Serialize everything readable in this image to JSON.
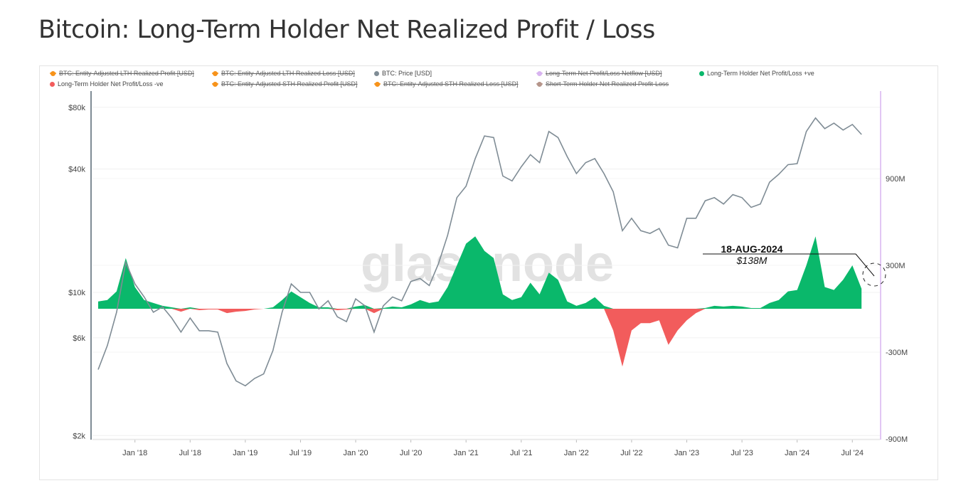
{
  "title": "Bitcoin: Long-Term Holder Net Realized Profit / Loss",
  "watermark": "glassnode",
  "legend": [
    {
      "label": "BTC: Entity-Adjusted LTH Realized Profit [USD]",
      "color": "#f7931a",
      "active": false
    },
    {
      "label": "BTC: Entity-Adjusted LTH Realized Loss [USD]",
      "color": "#f7931a",
      "active": false
    },
    {
      "label": "BTC: Price [USD]",
      "color": "#7f8c95",
      "active": true
    },
    {
      "label": "Long-Term Net Profit/Loss Netflow [USD]",
      "color": "#d8b4f0",
      "active": false
    },
    {
      "label": "Long-Term Holder Net Profit/Loss +ve",
      "color": "#0ab86b",
      "active": true
    },
    {
      "label": "Long-Term Holder Net Profit/Loss -ve",
      "color": "#f25c5c",
      "active": true
    },
    {
      "label": "BTC: Entity-Adjusted STH Realized Profit [USD]",
      "color": "#f7931a",
      "active": false
    },
    {
      "label": "BTC: Entity-Adjusted STH Realized Loss [USD]",
      "color": "#f7931a",
      "active": false
    },
    {
      "label": "Short-Term Holder Net Realized Profit-Loss",
      "color": "#b5958a",
      "active": false
    }
  ],
  "annotation": {
    "date": "18-AUG-2024",
    "value": "$138M"
  },
  "chart_data": {
    "type": "line+area",
    "x_tick_labels": [
      "Jan '18",
      "Jul '18",
      "Jan '19",
      "Jul '19",
      "Jan '20",
      "Jul '20",
      "Jan '21",
      "Jul '21",
      "Jan '22",
      "Jul '22",
      "Jan '23",
      "Jul '23",
      "Jan '24",
      "Jul '24"
    ],
    "y_left": {
      "scale": "log",
      "ticks": [
        {
          "v": 80000,
          "label": "$80k"
        },
        {
          "v": 40000,
          "label": "$40k"
        },
        {
          "v": 10000,
          "label": "$10k"
        },
        {
          "v": 6000,
          "label": "$6k"
        },
        {
          "v": 2000,
          "label": "$2k"
        }
      ]
    },
    "y_right": {
      "scale": "linear",
      "ticks": [
        {
          "v": 900,
          "label": "900M"
        },
        {
          "v": 300,
          "label": "300M"
        },
        {
          "v": -300,
          "label": "-300M"
        },
        {
          "v": -900,
          "label": "-900M"
        }
      ]
    },
    "dates": [
      "2017-09",
      "2017-10",
      "2017-11",
      "2017-12",
      "2018-01",
      "2018-02",
      "2018-03",
      "2018-04",
      "2018-05",
      "2018-06",
      "2018-07",
      "2018-08",
      "2018-09",
      "2018-10",
      "2018-11",
      "2018-12",
      "2019-01",
      "2019-02",
      "2019-03",
      "2019-04",
      "2019-05",
      "2019-06",
      "2019-07",
      "2019-08",
      "2019-09",
      "2019-10",
      "2019-11",
      "2019-12",
      "2020-01",
      "2020-02",
      "2020-03",
      "2020-04",
      "2020-05",
      "2020-06",
      "2020-07",
      "2020-08",
      "2020-09",
      "2020-10",
      "2020-11",
      "2020-12",
      "2021-01",
      "2021-02",
      "2021-03",
      "2021-04",
      "2021-05",
      "2021-06",
      "2021-07",
      "2021-08",
      "2021-09",
      "2021-10",
      "2021-11",
      "2021-12",
      "2022-01",
      "2022-02",
      "2022-03",
      "2022-04",
      "2022-05",
      "2022-06",
      "2022-07",
      "2022-08",
      "2022-09",
      "2022-10",
      "2022-11",
      "2022-12",
      "2023-01",
      "2023-02",
      "2023-03",
      "2023-04",
      "2023-05",
      "2023-06",
      "2023-07",
      "2023-08",
      "2023-09",
      "2023-10",
      "2023-11",
      "2023-12",
      "2024-01",
      "2024-02",
      "2024-03",
      "2024-04",
      "2024-05",
      "2024-06",
      "2024-07",
      "2024-08"
    ],
    "series": [
      {
        "name": "BTC: Price [USD]",
        "axis": "left",
        "color": "#7f8c95",
        "values": [
          4200,
          5500,
          8000,
          14000,
          11000,
          9500,
          8000,
          8500,
          7500,
          6400,
          7500,
          6500,
          6500,
          6400,
          4500,
          3700,
          3500,
          3800,
          4000,
          5200,
          8000,
          11000,
          10000,
          10000,
          8300,
          9100,
          7600,
          7200,
          9300,
          8600,
          6400,
          8600,
          9500,
          9100,
          11300,
          11700,
          10800,
          13800,
          19000,
          29000,
          33000,
          45000,
          58000,
          57000,
          37000,
          35000,
          41000,
          47000,
          43000,
          61000,
          57000,
          46000,
          38000,
          43000,
          45000,
          38000,
          31000,
          20000,
          23000,
          20000,
          19400,
          20500,
          17000,
          16500,
          23000,
          23000,
          28000,
          29000,
          27000,
          30000,
          29000,
          26000,
          27000,
          34500,
          37700,
          42000,
          42500,
          61000,
          71000,
          63000,
          67000,
          62000,
          66000,
          59000
        ]
      },
      {
        "name": "Long-Term Holder Net Profit/Loss",
        "axis": "right",
        "unit": "M USD",
        "pos_color": "#0ab86b",
        "neg_color": "#f25c5c",
        "values": [
          50,
          60,
          120,
          350,
          150,
          60,
          40,
          20,
          10,
          -20,
          10,
          -10,
          -5,
          -5,
          -30,
          -20,
          -15,
          -5,
          0,
          10,
          60,
          120,
          80,
          40,
          10,
          10,
          -10,
          -5,
          15,
          25,
          -30,
          5,
          15,
          10,
          30,
          60,
          40,
          50,
          150,
          300,
          450,
          500,
          400,
          350,
          100,
          60,
          80,
          180,
          100,
          250,
          200,
          50,
          20,
          40,
          80,
          20,
          -150,
          -400,
          -150,
          -100,
          -100,
          -80,
          -250,
          -150,
          -80,
          -30,
          5,
          20,
          15,
          20,
          15,
          5,
          5,
          40,
          60,
          120,
          130,
          300,
          500,
          150,
          130,
          200,
          300,
          138
        ]
      }
    ]
  }
}
